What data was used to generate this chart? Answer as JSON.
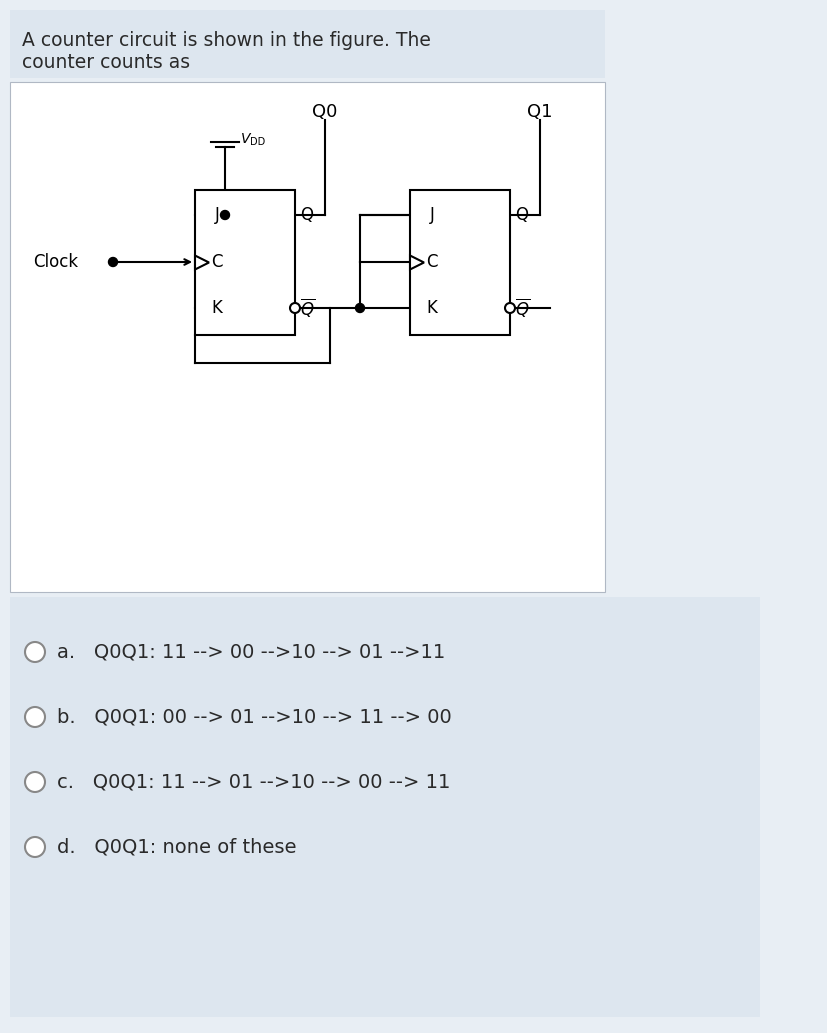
{
  "title_line1": "A counter circuit is shown in the figure. The",
  "title_line2": "counter counts as",
  "bg_color": "#e8eef4",
  "circuit_bg": "#ffffff",
  "options_bg": "#e8eef4",
  "options": [
    "a.   Q0Q1: 11 --> 00 -->10 --> 01 -->11",
    "b.   Q0Q1: 00 --> 01 -->10 --> 11 --> 00",
    "c.   Q0Q1: 11 --> 01 -->10 --> 00 --> 11",
    "d.   Q0Q1: none of these"
  ],
  "Q0_label": "Q0",
  "Q1_label": "Q1",
  "Clock_label": "Clock",
  "line_color": "#000000",
  "text_color": "#2a2a2a",
  "font_size_title": 13.5,
  "font_size_options": 14
}
